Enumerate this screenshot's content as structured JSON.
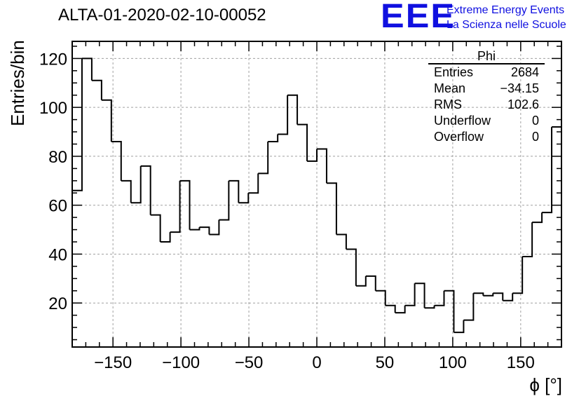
{
  "title": "ALTA-01-2020-02-10-00052",
  "logo": {
    "mark": "EEE",
    "line1": "Extreme Energy Events",
    "line2": "La Scienza nelle Scuole",
    "color": "#1010e0"
  },
  "stats": {
    "name": "Phi",
    "rows": [
      {
        "label": "Entries",
        "value": "2684"
      },
      {
        "label": "Mean",
        "value": "−34.15"
      },
      {
        "label": "RMS",
        "value": "102.6"
      },
      {
        "label": "Underflow",
        "value": "0"
      },
      {
        "label": "Overflow",
        "value": "0"
      }
    ]
  },
  "chart_data": {
    "type": "histogram",
    "xlabel": "ϕ [°]",
    "ylabel": "Entries/bin",
    "xlim": [
      -180,
      180
    ],
    "ylim": [
      2,
      127
    ],
    "bin_width": 7.2,
    "bin_low_edge": -180,
    "values": [
      66,
      120,
      111,
      103,
      86,
      70,
      61,
      76,
      56,
      45,
      49,
      70,
      50,
      51,
      48,
      54,
      70,
      61,
      65,
      73,
      86,
      89,
      105,
      93,
      78,
      83,
      69,
      48,
      42,
      27,
      31,
      25,
      19,
      16,
      19,
      28,
      18,
      19,
      25,
      8,
      13,
      24,
      23,
      24,
      21,
      24,
      39,
      53,
      57,
      92
    ],
    "xticks": [
      -150,
      -100,
      -50,
      0,
      50,
      100,
      150
    ],
    "xtick_labels": [
      "−150",
      "−100",
      "−50",
      "0",
      "50",
      "100",
      "150"
    ],
    "yticks": [
      20,
      40,
      60,
      80,
      100,
      120
    ],
    "ytick_labels": [
      "20",
      "40",
      "60",
      "80",
      "100",
      "120"
    ],
    "grid": true
  }
}
